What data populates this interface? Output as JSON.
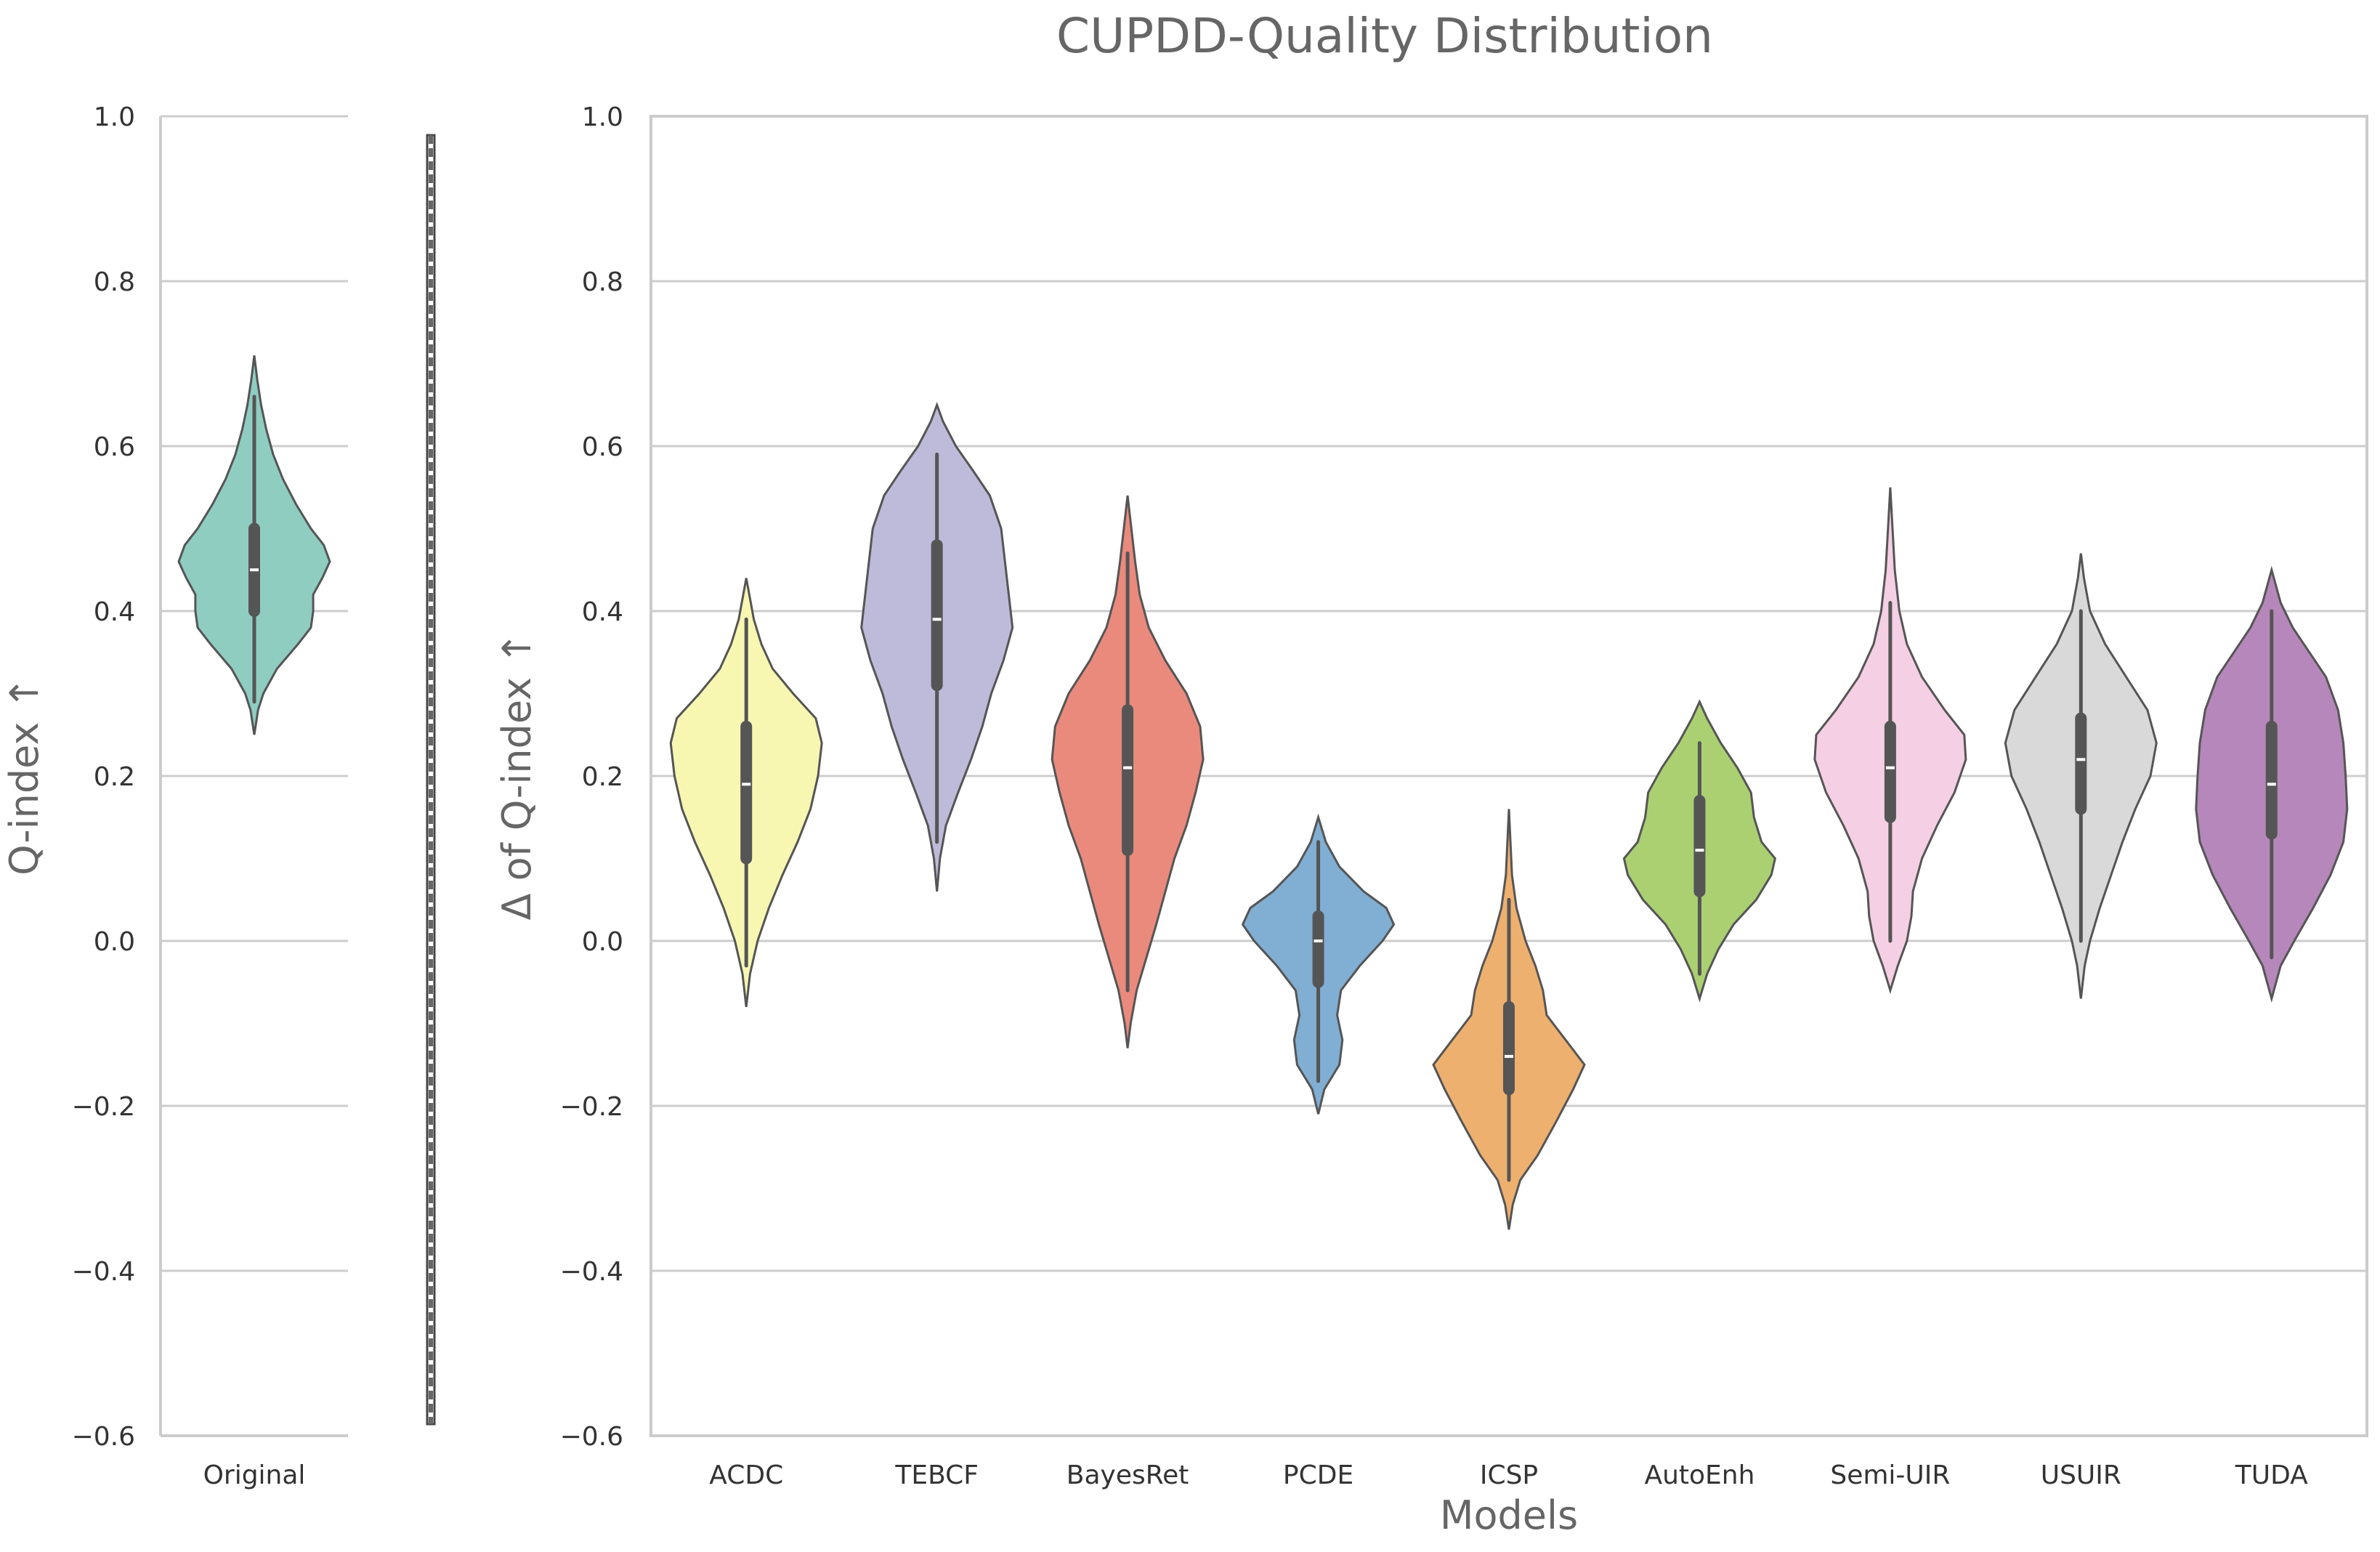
{
  "chart_data": {
    "title": "CUPDD-Quality Distribution",
    "type": "violin",
    "panels": [
      {
        "id": "original",
        "type": "violin",
        "xlabel": "",
        "ylabel": "Q-index ↑",
        "ylim": [
          -0.6,
          1.0
        ],
        "yticks": [
          -0.6,
          -0.4,
          -0.2,
          0.0,
          0.2,
          0.4,
          0.6,
          0.8,
          1.0
        ],
        "grid": true,
        "series": [
          {
            "name": "Original",
            "color": "#8fcdc1",
            "min": 0.25,
            "max": 0.71,
            "whisker_low": 0.29,
            "whisker_high": 0.66,
            "q1": 0.4,
            "median": 0.45,
            "q3": 0.5,
            "density": [
              [
                0.25,
                0.0
              ],
              [
                0.28,
                0.05
              ],
              [
                0.3,
                0.12
              ],
              [
                0.33,
                0.3
              ],
              [
                0.36,
                0.58
              ],
              [
                0.38,
                0.75
              ],
              [
                0.4,
                0.78
              ],
              [
                0.42,
                0.78
              ],
              [
                0.44,
                0.9
              ],
              [
                0.46,
                1.0
              ],
              [
                0.48,
                0.92
              ],
              [
                0.5,
                0.75
              ],
              [
                0.53,
                0.55
              ],
              [
                0.56,
                0.38
              ],
              [
                0.59,
                0.25
              ],
              [
                0.62,
                0.16
              ],
              [
                0.65,
                0.09
              ],
              [
                0.68,
                0.04
              ],
              [
                0.71,
                0.0
              ]
            ]
          }
        ]
      },
      {
        "id": "models",
        "type": "violin",
        "xlabel": "Models",
        "ylabel": "Δ of Q-index ↑",
        "ylim": [
          -0.6,
          1.0
        ],
        "yticks": [
          -0.6,
          -0.4,
          -0.2,
          0.0,
          0.2,
          0.4,
          0.6,
          0.8,
          1.0
        ],
        "grid": true,
        "categories": [
          "ACDC",
          "TEBCF",
          "BayesRet",
          "PCDE",
          "ICSP",
          "AutoEnh",
          "Semi-UIR",
          "USUIR",
          "TUDA"
        ],
        "series": [
          {
            "name": "ACDC",
            "color": "#f7f7b2",
            "min": -0.08,
            "max": 0.44,
            "whisker_low": -0.03,
            "whisker_high": 0.39,
            "q1": 0.1,
            "median": 0.19,
            "q3": 0.26,
            "density": [
              [
                -0.08,
                0.0
              ],
              [
                -0.04,
                0.05
              ],
              [
                0.0,
                0.15
              ],
              [
                0.04,
                0.3
              ],
              [
                0.08,
                0.48
              ],
              [
                0.12,
                0.68
              ],
              [
                0.16,
                0.85
              ],
              [
                0.2,
                0.95
              ],
              [
                0.24,
                1.0
              ],
              [
                0.27,
                0.92
              ],
              [
                0.3,
                0.62
              ],
              [
                0.33,
                0.35
              ],
              [
                0.36,
                0.2
              ],
              [
                0.39,
                0.1
              ],
              [
                0.42,
                0.04
              ],
              [
                0.44,
                0.0
              ]
            ]
          },
          {
            "name": "TEBCF",
            "color": "#bebad9",
            "min": 0.06,
            "max": 0.65,
            "whisker_low": 0.12,
            "whisker_high": 0.59,
            "q1": 0.31,
            "median": 0.39,
            "q3": 0.48,
            "density": [
              [
                0.06,
                0.0
              ],
              [
                0.1,
                0.04
              ],
              [
                0.14,
                0.12
              ],
              [
                0.18,
                0.28
              ],
              [
                0.22,
                0.45
              ],
              [
                0.26,
                0.6
              ],
              [
                0.3,
                0.72
              ],
              [
                0.34,
                0.88
              ],
              [
                0.38,
                1.0
              ],
              [
                0.42,
                0.95
              ],
              [
                0.46,
                0.9
              ],
              [
                0.5,
                0.85
              ],
              [
                0.54,
                0.7
              ],
              [
                0.57,
                0.48
              ],
              [
                0.6,
                0.25
              ],
              [
                0.63,
                0.08
              ],
              [
                0.65,
                0.0
              ]
            ]
          },
          {
            "name": "BayesRet",
            "color": "#ea8a7d",
            "min": -0.13,
            "max": 0.54,
            "whisker_low": -0.06,
            "whisker_high": 0.47,
            "q1": 0.11,
            "median": 0.21,
            "q3": 0.28,
            "density": [
              [
                -0.13,
                0.0
              ],
              [
                -0.1,
                0.04
              ],
              [
                -0.06,
                0.12
              ],
              [
                -0.02,
                0.25
              ],
              [
                0.02,
                0.38
              ],
              [
                0.06,
                0.5
              ],
              [
                0.1,
                0.62
              ],
              [
                0.14,
                0.78
              ],
              [
                0.18,
                0.9
              ],
              [
                0.22,
                1.0
              ],
              [
                0.26,
                0.96
              ],
              [
                0.3,
                0.78
              ],
              [
                0.34,
                0.5
              ],
              [
                0.38,
                0.28
              ],
              [
                0.42,
                0.16
              ],
              [
                0.46,
                0.1
              ],
              [
                0.5,
                0.05
              ],
              [
                0.54,
                0.0
              ]
            ]
          },
          {
            "name": "PCDE",
            "color": "#81aed3",
            "min": -0.21,
            "max": 0.15,
            "whisker_low": -0.17,
            "whisker_high": 0.12,
            "q1": -0.05,
            "median": 0.0,
            "q3": 0.03,
            "density": [
              [
                -0.21,
                0.0
              ],
              [
                -0.18,
                0.08
              ],
              [
                -0.15,
                0.28
              ],
              [
                -0.12,
                0.32
              ],
              [
                -0.09,
                0.25
              ],
              [
                -0.06,
                0.3
              ],
              [
                -0.03,
                0.55
              ],
              [
                0.0,
                0.85
              ],
              [
                0.02,
                1.0
              ],
              [
                0.04,
                0.9
              ],
              [
                0.06,
                0.6
              ],
              [
                0.09,
                0.28
              ],
              [
                0.12,
                0.1
              ],
              [
                0.15,
                0.0
              ]
            ]
          },
          {
            "name": "ICSP",
            "color": "#eeb06f",
            "min": -0.35,
            "max": 0.16,
            "whisker_low": -0.29,
            "whisker_high": 0.05,
            "q1": -0.18,
            "median": -0.14,
            "q3": -0.08,
            "density": [
              [
                -0.35,
                0.0
              ],
              [
                -0.32,
                0.05
              ],
              [
                -0.29,
                0.15
              ],
              [
                -0.26,
                0.38
              ],
              [
                -0.22,
                0.62
              ],
              [
                -0.18,
                0.85
              ],
              [
                -0.15,
                1.0
              ],
              [
                -0.12,
                0.75
              ],
              [
                -0.09,
                0.5
              ],
              [
                -0.06,
                0.45
              ],
              [
                -0.03,
                0.35
              ],
              [
                0.0,
                0.22
              ],
              [
                0.04,
                0.1
              ],
              [
                0.08,
                0.04
              ],
              [
                0.12,
                0.02
              ],
              [
                0.16,
                0.0
              ]
            ]
          },
          {
            "name": "AutoEnh",
            "color": "#abd072",
            "min": -0.07,
            "max": 0.29,
            "whisker_low": -0.04,
            "whisker_high": 0.24,
            "q1": 0.06,
            "median": 0.11,
            "q3": 0.17,
            "density": [
              [
                -0.07,
                0.0
              ],
              [
                -0.04,
                0.1
              ],
              [
                -0.01,
                0.25
              ],
              [
                0.02,
                0.45
              ],
              [
                0.05,
                0.75
              ],
              [
                0.08,
                0.95
              ],
              [
                0.1,
                1.0
              ],
              [
                0.12,
                0.82
              ],
              [
                0.15,
                0.72
              ],
              [
                0.18,
                0.68
              ],
              [
                0.21,
                0.5
              ],
              [
                0.24,
                0.28
              ],
              [
                0.27,
                0.1
              ],
              [
                0.29,
                0.0
              ]
            ]
          },
          {
            "name": "Semi-UIR",
            "color": "#f5cfe3",
            "min": -0.06,
            "max": 0.55,
            "whisker_low": 0.0,
            "whisker_high": 0.41,
            "q1": 0.15,
            "median": 0.21,
            "q3": 0.26,
            "density": [
              [
                -0.06,
                0.0
              ],
              [
                -0.03,
                0.1
              ],
              [
                0.0,
                0.22
              ],
              [
                0.03,
                0.28
              ],
              [
                0.06,
                0.3
              ],
              [
                0.1,
                0.42
              ],
              [
                0.14,
                0.62
              ],
              [
                0.18,
                0.85
              ],
              [
                0.22,
                1.0
              ],
              [
                0.25,
                0.98
              ],
              [
                0.28,
                0.72
              ],
              [
                0.32,
                0.42
              ],
              [
                0.36,
                0.22
              ],
              [
                0.4,
                0.12
              ],
              [
                0.45,
                0.06
              ],
              [
                0.5,
                0.03
              ],
              [
                0.55,
                0.0
              ]
            ]
          },
          {
            "name": "USUIR",
            "color": "#d9d9d9",
            "min": -0.07,
            "max": 0.47,
            "whisker_low": 0.0,
            "whisker_high": 0.4,
            "q1": 0.16,
            "median": 0.22,
            "q3": 0.27,
            "density": [
              [
                -0.07,
                0.0
              ],
              [
                -0.03,
                0.05
              ],
              [
                0.0,
                0.12
              ],
              [
                0.04,
                0.25
              ],
              [
                0.08,
                0.4
              ],
              [
                0.12,
                0.55
              ],
              [
                0.16,
                0.72
              ],
              [
                0.2,
                0.92
              ],
              [
                0.24,
                1.0
              ],
              [
                0.28,
                0.88
              ],
              [
                0.32,
                0.6
              ],
              [
                0.36,
                0.32
              ],
              [
                0.4,
                0.12
              ],
              [
                0.44,
                0.04
              ],
              [
                0.47,
                0.0
              ]
            ]
          },
          {
            "name": "TUDA",
            "color": "#b687ba",
            "min": -0.07,
            "max": 0.45,
            "whisker_low": -0.02,
            "whisker_high": 0.4,
            "q1": 0.13,
            "median": 0.19,
            "q3": 0.26,
            "density": [
              [
                -0.07,
                0.0
              ],
              [
                -0.03,
                0.12
              ],
              [
                0.0,
                0.3
              ],
              [
                0.04,
                0.55
              ],
              [
                0.08,
                0.78
              ],
              [
                0.12,
                0.95
              ],
              [
                0.16,
                1.0
              ],
              [
                0.2,
                0.98
              ],
              [
                0.24,
                0.95
              ],
              [
                0.28,
                0.88
              ],
              [
                0.32,
                0.72
              ],
              [
                0.35,
                0.5
              ],
              [
                0.38,
                0.28
              ],
              [
                0.41,
                0.12
              ],
              [
                0.45,
                0.0
              ]
            ]
          }
        ]
      }
    ]
  }
}
